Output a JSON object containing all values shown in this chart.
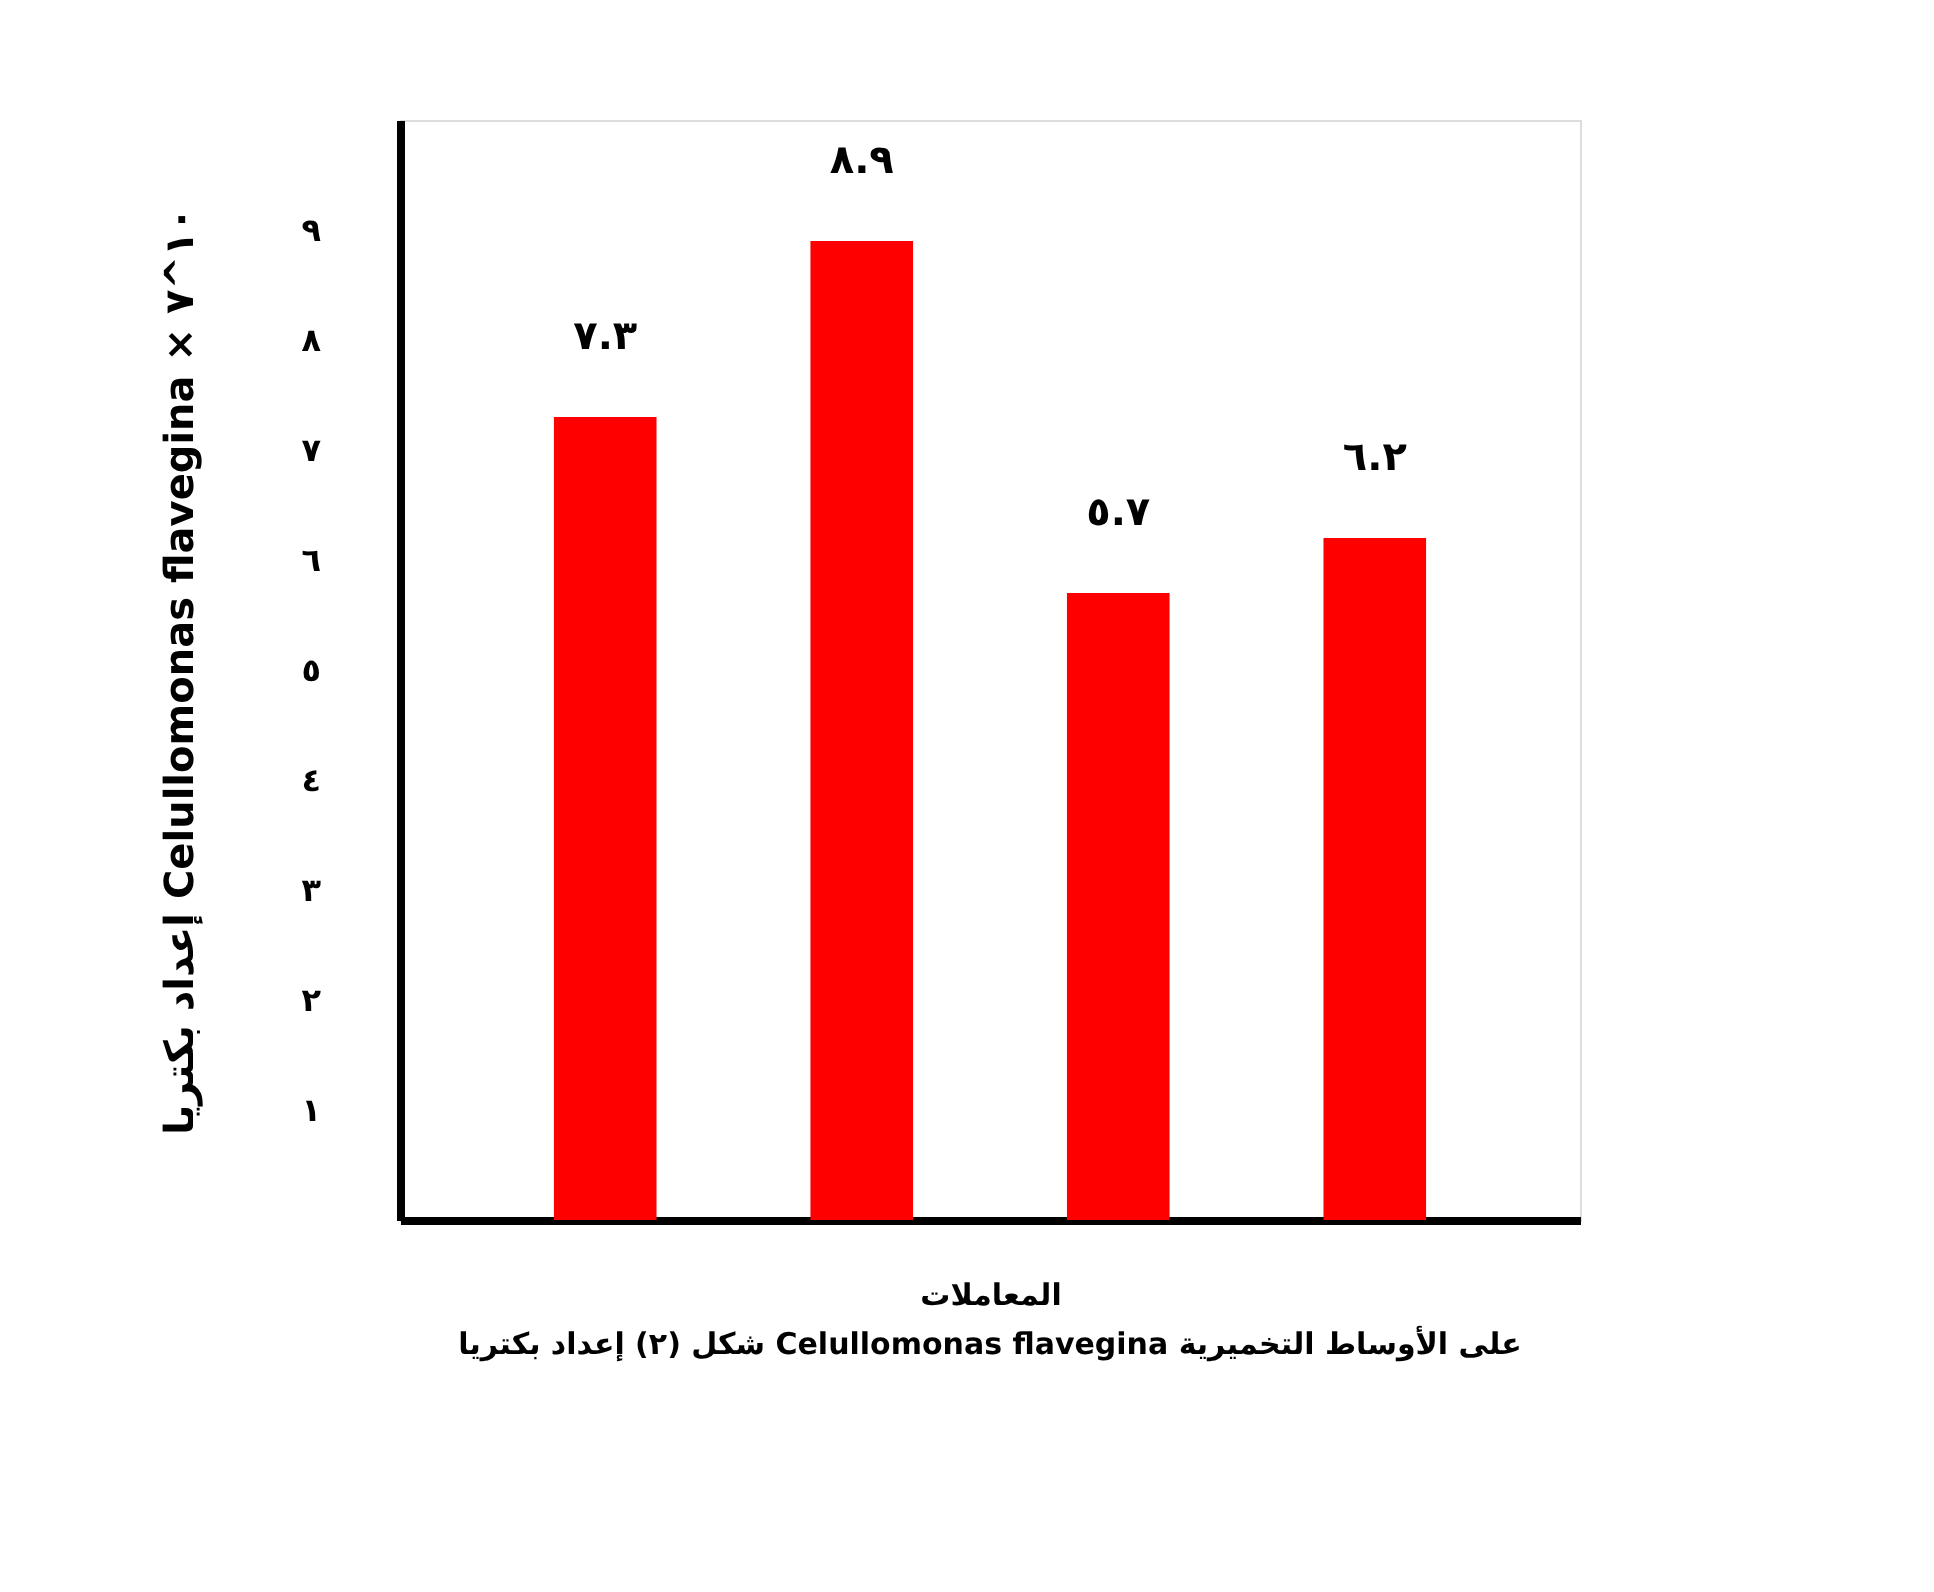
{
  "chart_data": {
    "type": "bar",
    "title": "شكل (٢) إعداد بكتريا Celullomonas flavegina على الأوساط التخميرية",
    "xlabel": "المعاملات",
    "ylabel": "إعداد بكتريا Celullomonas flavegina × ١٠^٧",
    "categories": [
      null,
      null,
      null,
      null
    ],
    "values": [
      7.3,
      8.9,
      5.7,
      6.2
    ],
    "value_labels": [
      "٧.٣",
      "٨.٩",
      "٥.٧",
      "٦.٢"
    ],
    "color": "#ff0000",
    "ylim": [
      0,
      10
    ],
    "yticks": [
      {
        "value": 1,
        "label": "١"
      },
      {
        "value": 2,
        "label": "٢"
      },
      {
        "value": 3,
        "label": "٣"
      },
      {
        "value": 4,
        "label": "٤"
      },
      {
        "value": 5,
        "label": "٥"
      },
      {
        "value": 6,
        "label": "٦"
      },
      {
        "value": 7,
        "label": "٧"
      },
      {
        "value": 8,
        "label": "٨"
      },
      {
        "value": 9,
        "label": "٩"
      }
    ],
    "grid": false
  }
}
